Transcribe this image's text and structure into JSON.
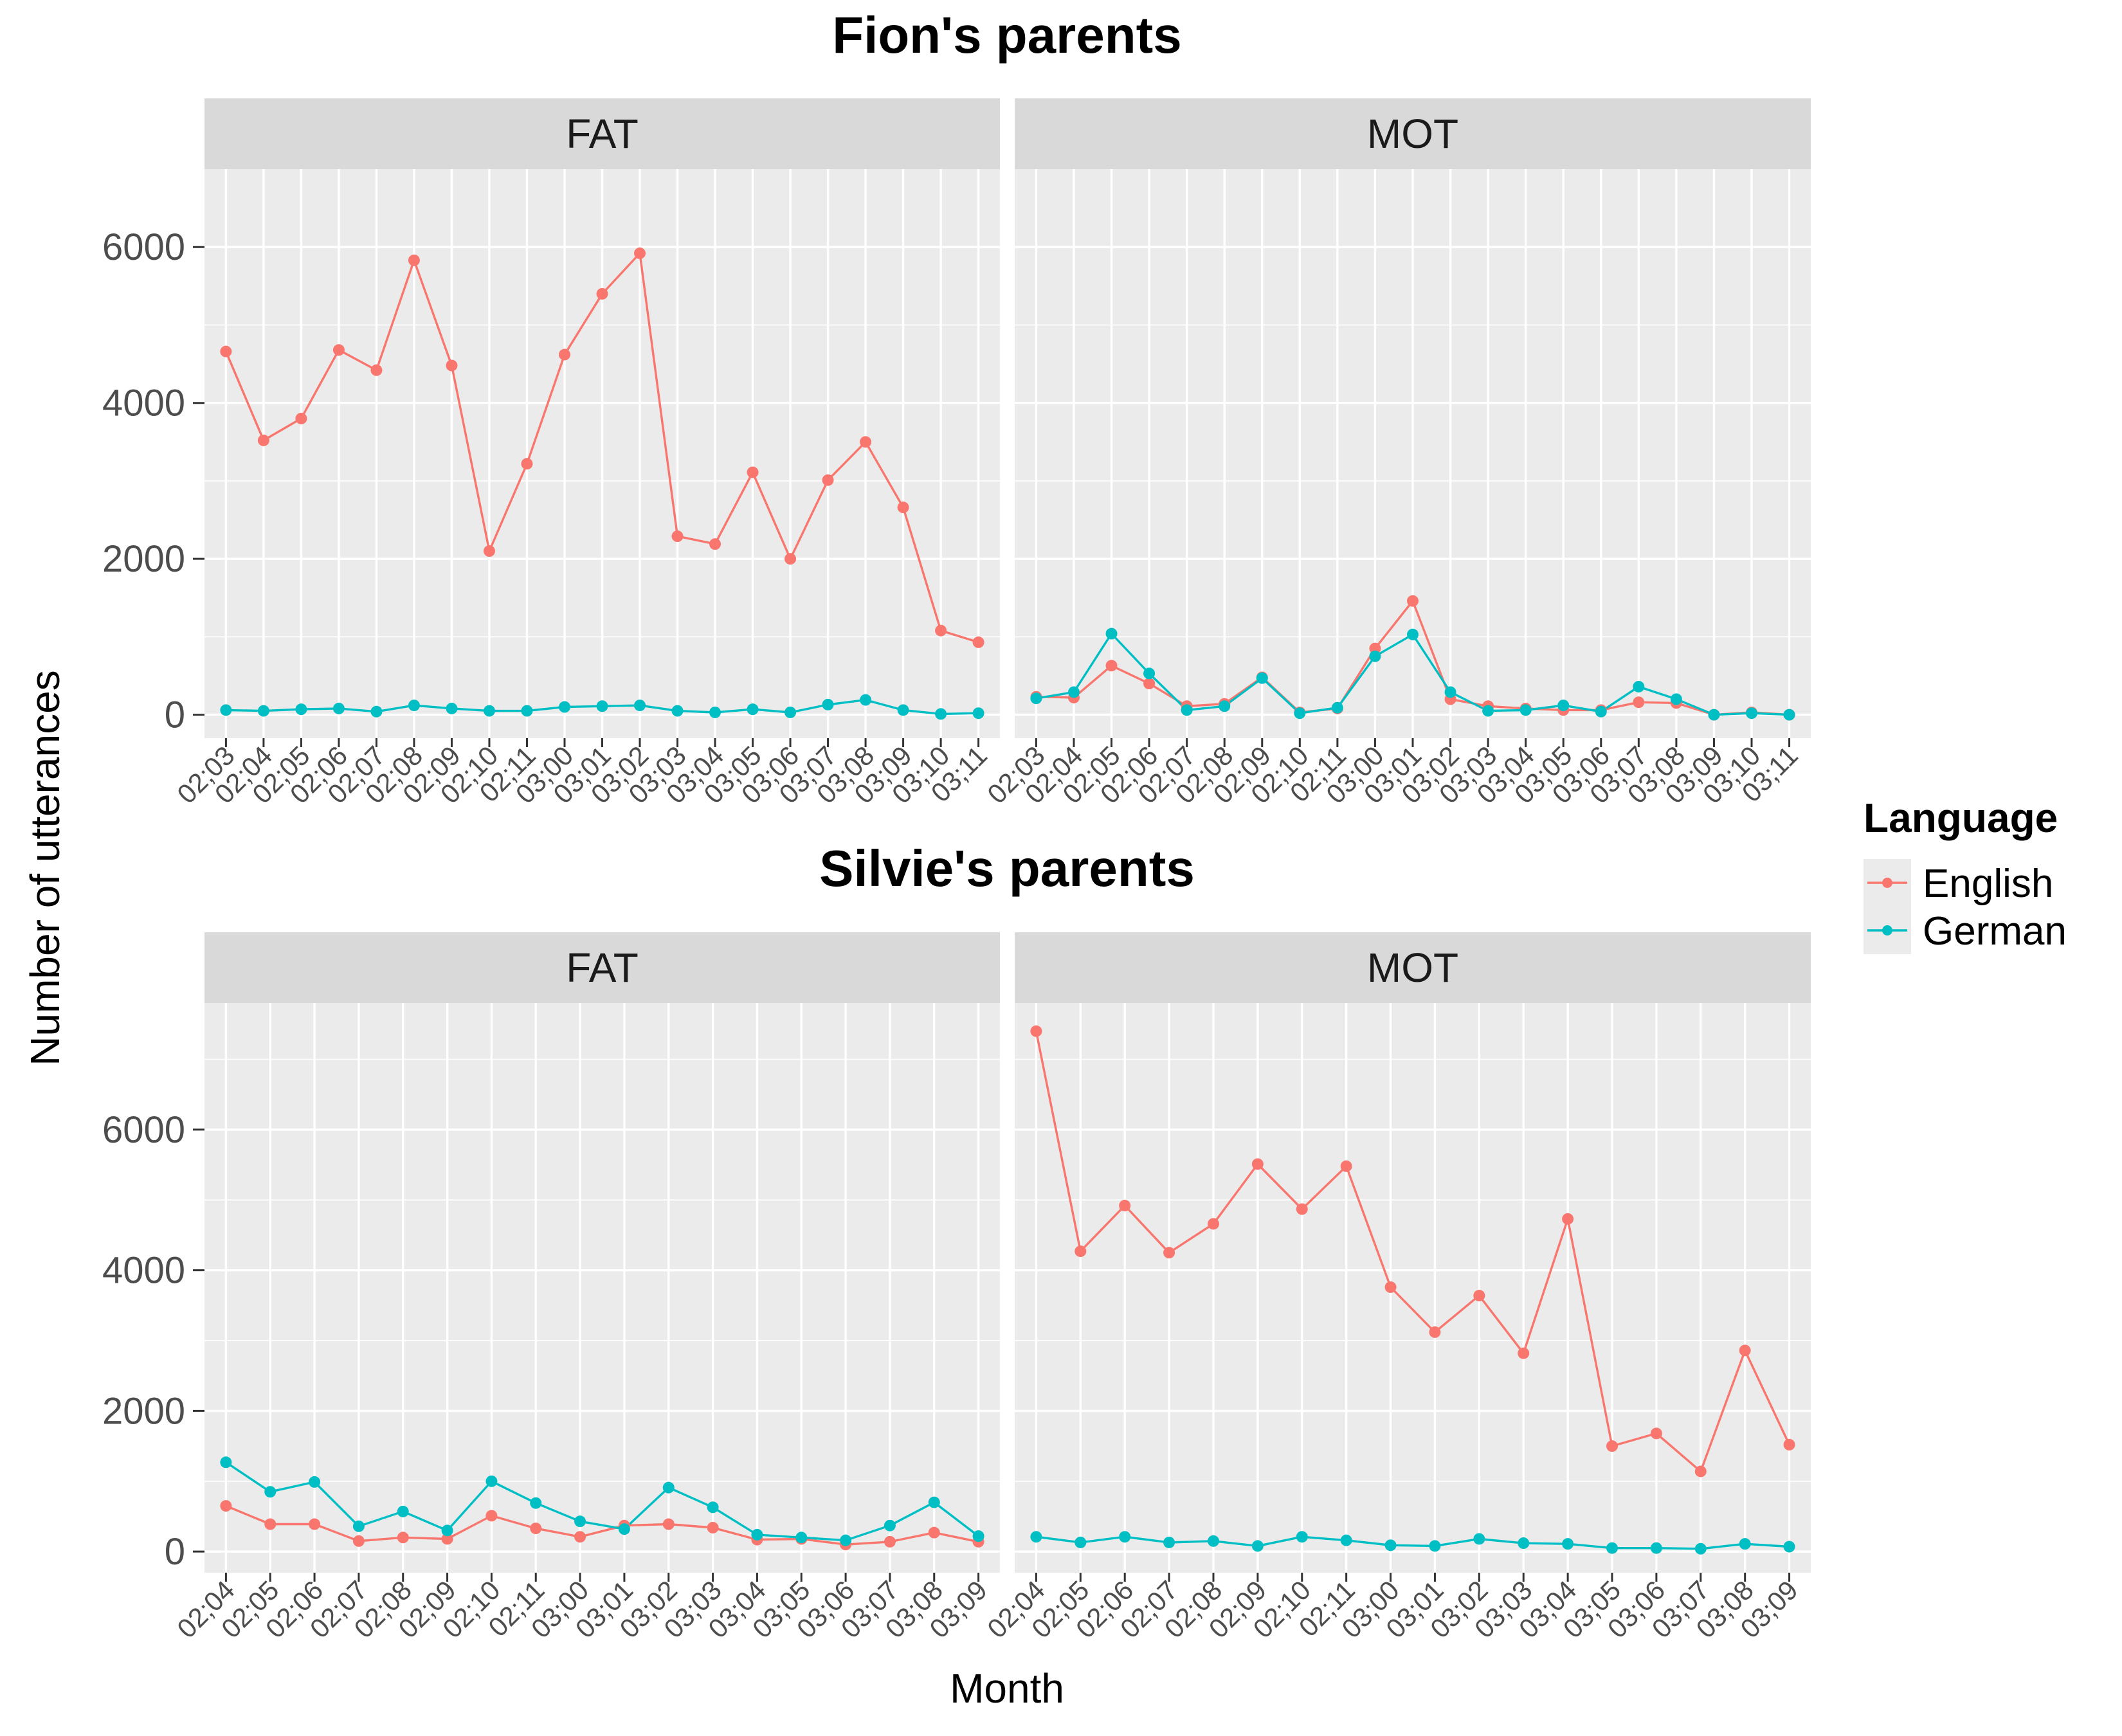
{
  "figure": {
    "y_axis_label": "Number of utterances",
    "x_axis_label": "Month"
  },
  "legend": {
    "title": "Language",
    "items": [
      {
        "label": "English",
        "color": "#F8766D"
      },
      {
        "label": "German",
        "color": "#00BFC4"
      }
    ]
  },
  "chart_data": [
    {
      "type": "line",
      "title": "Fion's parents",
      "xlabel": "Month",
      "ylabel": "Number of utterances",
      "y_ticks": [
        0,
        2000,
        4000,
        6000
      ],
      "ylim": [
        -300,
        7000
      ],
      "grid": true,
      "legend_position": "right",
      "panels": [
        {
          "label": "FAT",
          "categories": [
            "02;03",
            "02;04",
            "02;05",
            "02;06",
            "02;07",
            "02;08",
            "02;09",
            "02;10",
            "02;11",
            "03;00",
            "03;01",
            "03;02",
            "03;03",
            "03;04",
            "03;05",
            "03;06",
            "03;07",
            "03;08",
            "03;09",
            "03;10",
            "03;11"
          ],
          "series": [
            {
              "name": "English",
              "values": [
                4660,
                3520,
                3800,
                4680,
                4420,
                5830,
                4480,
                2100,
                3220,
                4620,
                5400,
                5920,
                2290,
                2190,
                3110,
                2000,
                3010,
                3500,
                2660,
                1080,
                930
              ]
            },
            {
              "name": "German",
              "values": [
                60,
                50,
                70,
                80,
                40,
                120,
                80,
                50,
                50,
                100,
                110,
                120,
                50,
                30,
                70,
                30,
                130,
                190,
                60,
                10,
                20
              ]
            }
          ]
        },
        {
          "label": "MOT",
          "categories": [
            "02;03",
            "02;04",
            "02;05",
            "02;06",
            "02;07",
            "02;08",
            "02;09",
            "02;10",
            "02;11",
            "03;00",
            "03;01",
            "03;02",
            "03;03",
            "03;04",
            "03;05",
            "03;06",
            "03;07",
            "03;08",
            "03;09",
            "03;10",
            "03;11"
          ],
          "series": [
            {
              "name": "English",
              "values": [
                230,
                220,
                630,
                400,
                110,
                140,
                480,
                30,
                80,
                850,
                1460,
                200,
                110,
                80,
                60,
                60,
                160,
                150,
                0,
                30,
                0
              ]
            },
            {
              "name": "German",
              "values": [
                210,
                290,
                1040,
                530,
                60,
                110,
                470,
                20,
                90,
                750,
                1030,
                290,
                50,
                60,
                120,
                40,
                360,
                200,
                0,
                20,
                0
              ]
            }
          ]
        }
      ]
    },
    {
      "type": "line",
      "title": "Silvie's parents",
      "xlabel": "Month",
      "ylabel": "Number of utterances",
      "y_ticks": [
        0,
        2000,
        4000,
        6000
      ],
      "ylim": [
        -300,
        7800
      ],
      "grid": true,
      "legend_position": "right",
      "panels": [
        {
          "label": "FAT",
          "categories": [
            "02;04",
            "02;05",
            "02;06",
            "02;07",
            "02;08",
            "02;09",
            "02;10",
            "02;11",
            "03;00",
            "03;01",
            "03;02",
            "03;03",
            "03;04",
            "03;05",
            "03;06",
            "03;07",
            "03;08",
            "03;09"
          ],
          "series": [
            {
              "name": "English",
              "values": [
                650,
                390,
                390,
                150,
                200,
                180,
                510,
                330,
                210,
                370,
                390,
                340,
                170,
                180,
                100,
                140,
                270,
                140
              ]
            },
            {
              "name": "German",
              "values": [
                1270,
                850,
                990,
                360,
                570,
                300,
                1000,
                690,
                430,
                320,
                910,
                630,
                240,
                200,
                160,
                370,
                700,
                220
              ]
            }
          ]
        },
        {
          "label": "MOT",
          "categories": [
            "02;04",
            "02;05",
            "02;06",
            "02;07",
            "02;08",
            "02;09",
            "02;10",
            "02;11",
            "03;00",
            "03;01",
            "03;02",
            "03;03",
            "03;04",
            "03;05",
            "03;06",
            "03;07",
            "03;08",
            "03;09"
          ],
          "series": [
            {
              "name": "English",
              "values": [
                7400,
                4270,
                4920,
                4250,
                4660,
                5510,
                4870,
                5480,
                3760,
                3120,
                3640,
                2820,
                4730,
                1500,
                1680,
                1140,
                2860,
                1520
              ]
            },
            {
              "name": "German",
              "values": [
                210,
                130,
                210,
                130,
                150,
                80,
                210,
                160,
                90,
                80,
                180,
                120,
                110,
                50,
                50,
                40,
                110,
                70
              ]
            }
          ]
        }
      ]
    }
  ]
}
